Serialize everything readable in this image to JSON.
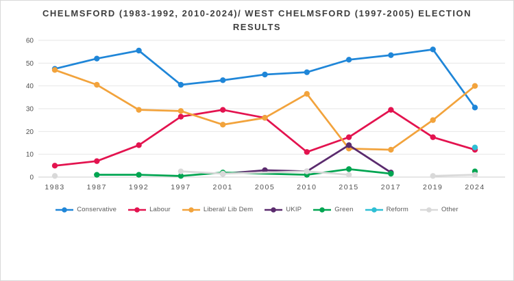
{
  "page": {
    "background": "#ffffff",
    "border_color": "#d8d8d8"
  },
  "chart_data": {
    "type": "line",
    "title": "CHELMSFORD (1983-1992, 2010-2024)/ WEST CHELMSFORD (1997-2005) ELECTION RESULTS",
    "categories": [
      "1983",
      "1987",
      "1992",
      "1997",
      "2001",
      "2005",
      "2010",
      "2015",
      "2017",
      "2019",
      "2024"
    ],
    "y_axis": {
      "min": 0,
      "max": 60,
      "step": 10,
      "tick_labels": [
        "0",
        "10",
        "20",
        "30",
        "40",
        "50",
        "60"
      ],
      "gridlines": true
    },
    "x_axis": {
      "tick_labels": [
        "1983",
        "1987",
        "1992",
        "1997",
        "2001",
        "2005",
        "2010",
        "2015",
        "2017",
        "2019",
        "2024"
      ]
    },
    "legend_position": "bottom",
    "grid_color": "#e6e6e6",
    "axis_line_color": "#cccccc",
    "tick_label_color": "#4f4f4f",
    "series": [
      {
        "name": "Conservative",
        "color": "#1f86d8",
        "segments": [
          [
            [
              "1983",
              47.5
            ],
            [
              "1987",
              52
            ],
            [
              "1992",
              55.5
            ],
            [
              "1997",
              40.5
            ],
            [
              "2001",
              42.5
            ],
            [
              "2005",
              45
            ],
            [
              "2010",
              46
            ],
            [
              "2015",
              51.5
            ],
            [
              "2017",
              53.5
            ],
            [
              "2019",
              56
            ],
            [
              "2024",
              30.5
            ]
          ]
        ]
      },
      {
        "name": "Labour",
        "color": "#e3134f",
        "segments": [
          [
            [
              "1983",
              5
            ],
            [
              "1987",
              7
            ],
            [
              "1992",
              14
            ],
            [
              "1997",
              26.5
            ],
            [
              "2001",
              29.5
            ],
            [
              "2005",
              26
            ],
            [
              "2010",
              11
            ],
            [
              "2015",
              17.5
            ],
            [
              "2017",
              29.5
            ],
            [
              "2019",
              17.5
            ],
            [
              "2024",
              12
            ]
          ]
        ]
      },
      {
        "name": "Liberal/ Lib Dem",
        "color": "#f2a33c",
        "segments": [
          [
            [
              "1983",
              47
            ],
            [
              "1987",
              40.5
            ],
            [
              "1992",
              29.5
            ],
            [
              "1997",
              29
            ],
            [
              "2001",
              23
            ],
            [
              "2005",
              26
            ],
            [
              "2010",
              36.5
            ],
            [
              "2015",
              12.5
            ],
            [
              "2017",
              12
            ],
            [
              "2019",
              25
            ],
            [
              "2024",
              40
            ]
          ]
        ]
      },
      {
        "name": "UKIP",
        "color": "#5b2b6e",
        "segments": [
          [
            [
              "2001",
              1.5
            ],
            [
              "2005",
              3
            ],
            [
              "2010",
              2.5
            ],
            [
              "2015",
              14
            ],
            [
              "2017",
              2
            ]
          ]
        ]
      },
      {
        "name": "Green",
        "color": "#00a551",
        "segments": [
          [
            [
              "1987",
              1
            ],
            [
              "1992",
              1
            ],
            [
              "1997",
              0.5
            ],
            [
              "2001",
              2
            ],
            [
              "2010",
              1
            ],
            [
              "2015",
              3.5
            ],
            [
              "2017",
              1.5
            ]
          ],
          [
            [
              "2024",
              2.5
            ]
          ]
        ]
      },
      {
        "name": "Reform",
        "color": "#2ebfd4",
        "segments": [
          [
            [
              "2024",
              13
            ]
          ]
        ]
      },
      {
        "name": "Other",
        "color": "#d9d9d9",
        "segments": [
          [
            [
              "1983",
              0.5
            ]
          ],
          [
            [
              "1997",
              2.5
            ],
            [
              "2001",
              1.5
            ],
            [
              "2010",
              2.5
            ],
            [
              "2015",
              1
            ]
          ],
          [
            [
              "2019",
              0.5
            ],
            [
              "2024",
              1
            ]
          ]
        ]
      }
    ]
  }
}
